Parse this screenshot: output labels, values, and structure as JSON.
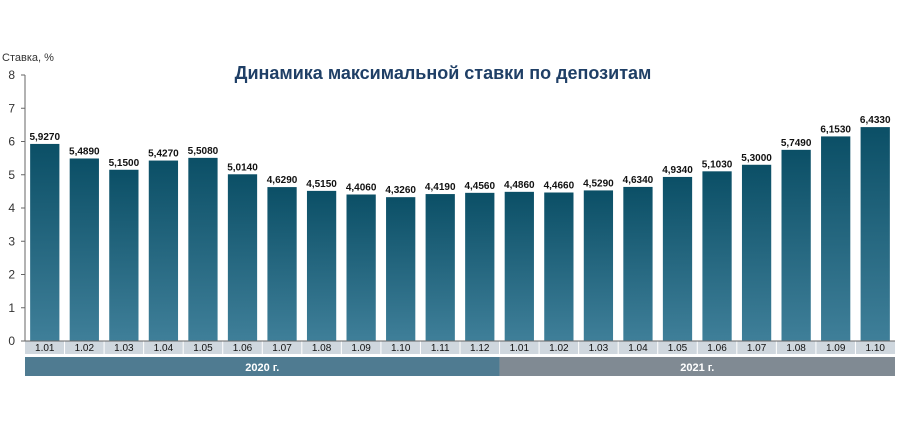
{
  "chart_data": {
    "type": "bar",
    "title": "Динамика максимальной ставки по депозитам",
    "ylabel": "Ставка, %",
    "ylim": [
      0,
      8
    ],
    "yticks": [
      0,
      1,
      2,
      3,
      4,
      5,
      6,
      7,
      8
    ],
    "categories": [
      "1.01",
      "1.02",
      "1.03",
      "1.04",
      "1.05",
      "1.06",
      "1.07",
      "1.08",
      "1.09",
      "1.10",
      "1.11",
      "1.12",
      "1.01",
      "1.02",
      "1.03",
      "1.04",
      "1.05",
      "1.06",
      "1.07",
      "1.08",
      "1.09",
      "1.10"
    ],
    "values": [
      5.927,
      5.489,
      5.15,
      5.427,
      5.508,
      5.014,
      4.629,
      4.515,
      4.406,
      4.326,
      4.419,
      4.456,
      4.486,
      4.466,
      4.529,
      4.634,
      4.934,
      5.103,
      5.3,
      5.749,
      6.153,
      6.433
    ],
    "value_labels": [
      "5,9270",
      "5,4890",
      "5,1500",
      "5,4270",
      "5,5080",
      "5,0140",
      "4,6290",
      "4,5150",
      "4,4060",
      "4,3260",
      "4,4190",
      "4,4560",
      "4,4860",
      "4,4660",
      "4,5290",
      "4,6340",
      "4,9340",
      "5,1030",
      "5,3000",
      "5,7490",
      "6,1530",
      "6,4330"
    ],
    "groups": [
      {
        "label": "2020 г.",
        "count": 12,
        "color": "#4f7b91"
      },
      {
        "label": "2021 г.",
        "count": 10,
        "color": "#808a93"
      }
    ],
    "colors": {
      "bar_top": "#0b4f66",
      "bar_bottom": "#3f7f99",
      "category_band": "#cfd7de",
      "axis": "#666666",
      "title": "#1f3f66"
    },
    "grid": false,
    "legend": "none"
  }
}
